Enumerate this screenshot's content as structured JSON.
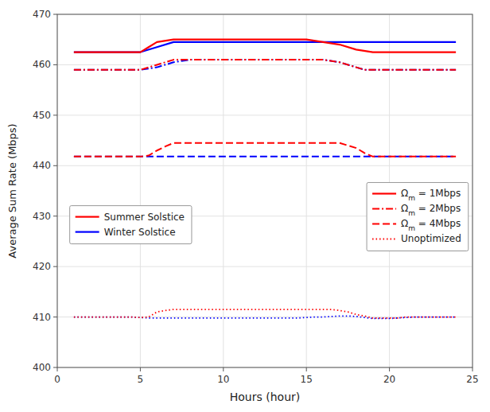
{
  "chart_data": {
    "type": "line",
    "xlabel": "Hours (hour)",
    "ylabel": "Average Sum Rate (Mbps)",
    "xlim": [
      0,
      25
    ],
    "ylim": [
      400,
      470
    ],
    "xticks": [
      0,
      5,
      10,
      15,
      20,
      25
    ],
    "yticks": [
      400,
      410,
      420,
      430,
      440,
      450,
      460,
      470
    ],
    "grid": true,
    "series": [
      {
        "color": "#0000FF",
        "line_style": "solid",
        "x": [
          1,
          5,
          6,
          7,
          8,
          16,
          17,
          18,
          19,
          24
        ],
        "values": [
          462.5,
          462.5,
          463.5,
          464.5,
          464.5,
          464.5,
          464.5,
          464.5,
          464.5,
          464.5
        ]
      },
      {
        "color": "#FF0000",
        "line_style": "solid",
        "x": [
          1,
          5,
          5.5,
          6,
          7,
          15,
          16,
          17,
          18,
          19,
          24
        ],
        "values": [
          462.5,
          462.5,
          463.5,
          464.5,
          465,
          465,
          464.5,
          464,
          463,
          462.5,
          462.5
        ]
      },
      {
        "color": "#0000FF",
        "line_style": "dashdot",
        "x": [
          1,
          5,
          6,
          7,
          8,
          16,
          17,
          18,
          18.5,
          19,
          24
        ],
        "values": [
          459,
          459,
          459.5,
          460.5,
          461,
          461,
          460.5,
          459.5,
          459,
          459,
          459
        ]
      },
      {
        "color": "#FF0000",
        "line_style": "dashdot",
        "x": [
          1,
          5,
          5.5,
          6,
          7,
          15,
          16,
          17,
          18,
          18.5,
          19,
          24
        ],
        "values": [
          459,
          459,
          459.5,
          460,
          461,
          461,
          461,
          460.5,
          459.5,
          459,
          459,
          459
        ]
      },
      {
        "color": "#0000FF",
        "line_style": "dashed",
        "x": [
          1,
          5,
          6,
          7,
          8,
          17,
          18,
          18.5,
          19,
          19.5,
          24
        ],
        "values": [
          441.8,
          441.8,
          441.8,
          441.8,
          441.8,
          441.8,
          441.8,
          441.8,
          441.8,
          441.8,
          441.8
        ]
      },
      {
        "color": "#FF0000",
        "line_style": "dashed",
        "x": [
          1,
          5,
          5.5,
          6,
          6.5,
          7,
          8,
          16,
          17,
          18,
          18.5,
          19,
          24
        ],
        "values": [
          441.8,
          441.8,
          442,
          443,
          443.8,
          444.5,
          444.5,
          444.5,
          444.5,
          443.5,
          442.5,
          441.8,
          441.8
        ]
      },
      {
        "color": "#0000FF",
        "line_style": "dotted",
        "x": [
          1,
          1.5,
          2,
          2.5,
          3,
          3.5,
          4,
          4.5,
          5,
          5.5,
          6,
          6.5,
          7,
          7.5,
          8,
          8.5,
          9,
          9.5,
          10,
          10.5,
          11,
          11.5,
          12,
          12.5,
          13,
          13.5,
          14,
          14.5,
          15,
          15.5,
          16,
          16.5,
          17,
          17.5,
          18,
          18.5,
          19,
          19.5,
          20,
          20.5,
          21,
          21.5,
          22,
          22.5,
          23,
          23.5,
          24
        ],
        "values": [
          410,
          410,
          410,
          410,
          410,
          410,
          410,
          410,
          409.9,
          409.8,
          409.8,
          409.8,
          409.8,
          409.8,
          409.8,
          409.8,
          409.8,
          409.8,
          409.8,
          409.8,
          409.8,
          409.8,
          409.8,
          409.8,
          409.8,
          409.8,
          409.8,
          409.8,
          409.9,
          410,
          410,
          410.1,
          410.2,
          410.2,
          410.1,
          409.9,
          409.7,
          409.7,
          409.7,
          409.8,
          409.9,
          410,
          410,
          410,
          410,
          410,
          410
        ]
      },
      {
        "color": "#FF0000",
        "line_style": "dotted",
        "x": [
          1,
          1.5,
          2,
          2.5,
          3,
          3.5,
          4,
          4.5,
          5,
          5.5,
          6,
          6.5,
          7,
          7.5,
          8,
          8.5,
          9,
          9.5,
          10,
          10.5,
          11,
          11.5,
          12,
          12.5,
          13,
          13.5,
          14,
          14.5,
          15,
          15.5,
          16,
          16.5,
          17,
          17.5,
          18,
          18.5,
          19,
          19.5,
          20,
          20.5,
          21,
          21.5,
          22,
          22.5,
          23,
          23.5,
          24
        ],
        "values": [
          410,
          410,
          410,
          410,
          410,
          410,
          410,
          410,
          409.9,
          410,
          411,
          411.3,
          411.5,
          411.5,
          411.5,
          411.5,
          411.5,
          411.5,
          411.5,
          411.5,
          411.5,
          411.5,
          411.5,
          411.5,
          411.5,
          411.5,
          411.5,
          411.5,
          411.5,
          411.5,
          411.5,
          411.5,
          411.3,
          411.0,
          410.5,
          410.2,
          409.8,
          409.8,
          409.8,
          409.8,
          410,
          410,
          410,
          410,
          410,
          410,
          410
        ]
      }
    ],
    "legends": [
      {
        "legend": "lower left",
        "entries": [
          {
            "label": "Summer Solstice",
            "color": "#FF0000",
            "line_style": "solid"
          },
          {
            "label": "Winter Solstice",
            "color": "#0000FF",
            "line_style": "solid"
          }
        ]
      },
      {
        "legend": "lower right",
        "entries": [
          {
            "label": "Ωm = 1Mbps",
            "color": "#FF0000",
            "line_style": "solid"
          },
          {
            "label": "Ωm = 2Mbps",
            "color": "#FF0000",
            "line_style": "dashdot"
          },
          {
            "label": "Ωm = 4Mbps",
            "color": "#FF0000",
            "line_style": "dashed"
          },
          {
            "label": "Unoptimized",
            "color": "#FF0000",
            "line_style": "dotted"
          }
        ]
      }
    ]
  }
}
